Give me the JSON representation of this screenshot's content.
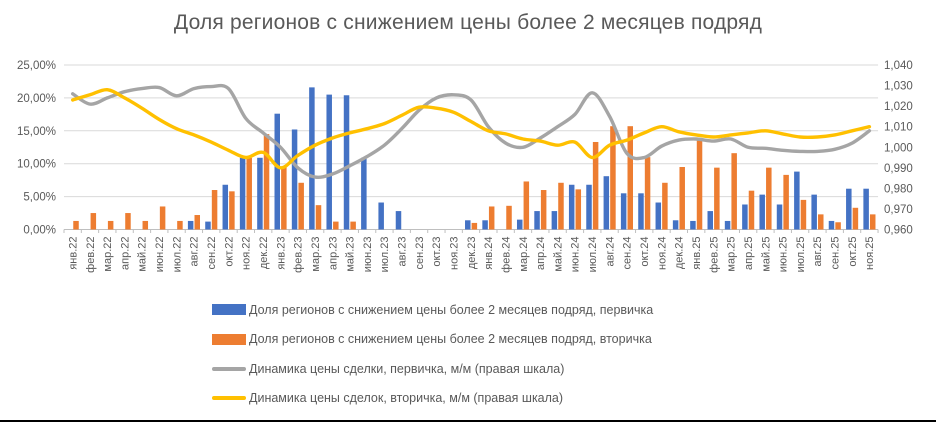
{
  "title": "Доля регионов с снижением цены более 2 месяцев подряд",
  "chart_data": {
    "type": "combo bar+line",
    "grid": "horizontal",
    "legend_position": "bottom-left",
    "categories": [
      "янв.22",
      "фев.22",
      "мар.22",
      "апр.22",
      "май.22",
      "июн.22",
      "июл.22",
      "авг.22",
      "сен.22",
      "окт.22",
      "ноя.22",
      "дек.22",
      "янв.23",
      "фев.23",
      "мар.23",
      "апр.23",
      "май.23",
      "июн.23",
      "июл.23",
      "авг.23",
      "сен.23",
      "окт.23",
      "ноя.23",
      "дек.23",
      "янв.24",
      "фев.24",
      "мар.24",
      "апр.24",
      "май.24",
      "июн.24",
      "июл.24",
      "авг.24",
      "сен.24",
      "окт.24",
      "ноя.24",
      "дек.24",
      "янв.25",
      "фев.25",
      "мар.25",
      "апр.25",
      "май.25",
      "июн.25",
      "июл.25",
      "авг.25",
      "сен.25",
      "окт.25",
      "ноя.25"
    ],
    "left_axis": {
      "min": 0,
      "max": 25,
      "unit": "%",
      "ticks": [
        "0,00%",
        "5,00%",
        "10,00%",
        "15,00%",
        "20,00%",
        "25,00%"
      ]
    },
    "right_axis": {
      "min": 0.96,
      "max": 1.04,
      "ticks": [
        "0,960",
        "0,970",
        "0,980",
        "0,990",
        "1,000",
        "1,010",
        "1,020",
        "1,030",
        "1,040"
      ]
    },
    "series": [
      {
        "name": "Доля регионов с снижением цены более 2 месяцев подряд, первичка",
        "type": "bar",
        "axis": "left",
        "color": "#4472C4",
        "values": [
          0,
          0,
          0,
          0,
          0,
          0,
          0,
          1.3,
          1.2,
          6.8,
          10.9,
          10.9,
          17.6,
          15.2,
          21.6,
          20.5,
          20.4,
          10.9,
          4.1,
          2.8,
          0,
          0,
          0,
          1.4,
          1.4,
          0,
          1.5,
          2.8,
          2.8,
          6.8,
          6.8,
          8.1,
          5.5,
          5.5,
          4.1,
          1.4,
          1.3,
          2.8,
          1.3,
          3.8,
          5.3,
          3.8,
          8.8,
          5.3,
          1.3,
          6.2,
          6.2
        ]
      },
      {
        "name": "Доля регионов с снижением цены более 2 месяцев подряд, вторичка",
        "type": "bar",
        "axis": "left",
        "color": "#ED7D31",
        "values": [
          1.3,
          2.5,
          1.3,
          2.5,
          1.3,
          3.5,
          1.3,
          2.2,
          6.0,
          5.8,
          10.9,
          14.5,
          9.6,
          7.1,
          3.7,
          1.2,
          1.2,
          0,
          0,
          0,
          0,
          0,
          0,
          1.0,
          3.5,
          3.6,
          7.3,
          6.0,
          7.1,
          6.1,
          13.3,
          15.7,
          15.7,
          11.0,
          7.1,
          9.5,
          13.6,
          9.4,
          11.6,
          5.9,
          9.4,
          8.3,
          4.5,
          2.3,
          1.1,
          3.3,
          2.3
        ]
      },
      {
        "name": "Динамика цены сделки, первичка, м/м (правая шкала)",
        "type": "line",
        "axis": "right",
        "color": "#A5A5A5",
        "values": [
          1.026,
          1.021,
          1.024,
          1.027,
          1.0285,
          1.029,
          1.025,
          1.0285,
          1.0295,
          1.0285,
          1.014,
          1.007,
          1.0,
          0.99,
          0.9855,
          0.987,
          0.991,
          0.9955,
          1.001,
          1.009,
          1.018,
          1.024,
          1.0255,
          1.023,
          1.01,
          1.002,
          1.0,
          1.0045,
          1.01,
          1.016,
          1.0265,
          1.015,
          0.997,
          0.995,
          1.0005,
          1.0035,
          1.004,
          1.003,
          1.004,
          1.0,
          0.9995,
          0.9985,
          0.998,
          0.998,
          0.999,
          1.002,
          1.008
        ]
      },
      {
        "name": "Динамика цены сделок, вторичка, м/м (правая шкала)",
        "type": "line",
        "axis": "right",
        "color": "#FFC000",
        "values": [
          1.023,
          1.0255,
          1.028,
          1.024,
          1.019,
          1.0135,
          1.009,
          1.006,
          1.0025,
          0.9985,
          0.995,
          0.9975,
          0.99,
          0.996,
          1.001,
          1.0045,
          1.007,
          1.009,
          1.0115,
          1.0155,
          1.0195,
          1.019,
          1.017,
          1.0125,
          1.008,
          1.0065,
          1.004,
          1.003,
          1.001,
          1.0025,
          0.995,
          1.001,
          1.0035,
          1.007,
          1.01,
          1.0075,
          1.006,
          1.005,
          1.006,
          1.007,
          1.008,
          1.0065,
          1.005,
          1.005,
          1.006,
          1.008,
          1.01
        ]
      }
    ],
    "style": {
      "gridline_color": "#D9D9D9",
      "axis_color": "#BFBFBF",
      "label_color": "#595959",
      "title_color": "#595959"
    }
  }
}
